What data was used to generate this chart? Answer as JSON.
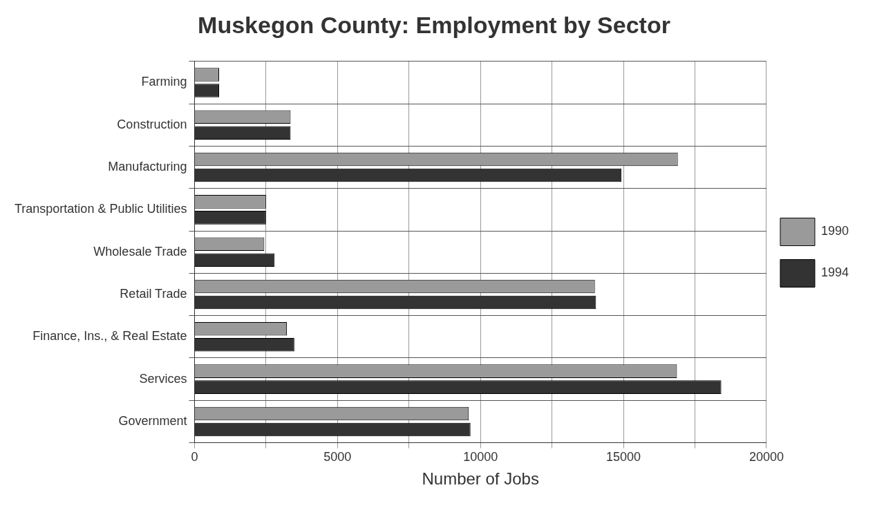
{
  "chart_data": {
    "type": "bar",
    "orientation": "horizontal",
    "title": "Muskegon County: Employment by Sector",
    "xlabel": "Number of Jobs",
    "categories": [
      "Farming",
      "Construction",
      "Manufacturing",
      "Transportation & Public Utilities",
      "Wholesale Trade",
      "Retail Trade",
      "Finance, Ins., & Real Estate",
      "Services",
      "Government"
    ],
    "series": [
      {
        "name": "1990",
        "color": "#9a9a9a",
        "values": [
          860,
          3360,
          16900,
          2500,
          2440,
          14000,
          3230,
          16870,
          9590
        ]
      },
      {
        "name": "1994",
        "color": "#333333",
        "values": [
          860,
          3360,
          14930,
          2500,
          2800,
          14040,
          3490,
          18420,
          9650
        ]
      }
    ],
    "xlim": [
      0,
      20000
    ],
    "xticks": [
      0,
      {
        "value": 2500,
        "label": null
      },
      5000,
      {
        "value": 7500,
        "label": null
      },
      10000,
      {
        "value": 12500,
        "label": null
      },
      15000,
      {
        "value": 17500,
        "label": null
      },
      20000
    ],
    "grid": true,
    "legend": "right"
  }
}
